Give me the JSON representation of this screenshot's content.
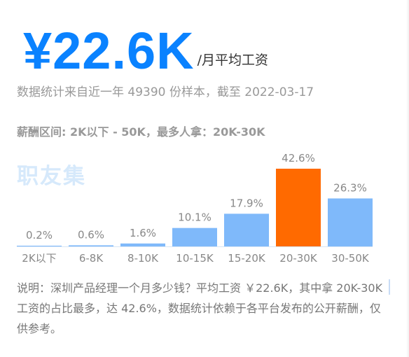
{
  "header": {
    "salary_value": "¥22.6K",
    "salary_unit": "/月平均工资",
    "source_text": "数据统计来自近一年 49390 份样本，截至 2022-03-17",
    "range_text": "薪酬区间: 2K以下 - 50K，最多人拿：20K-30K"
  },
  "watermark": "职友集",
  "chart_data": {
    "type": "bar",
    "title": "",
    "xlabel": "",
    "ylabel": "",
    "categories": [
      "2K以下",
      "6-8K",
      "8-10K",
      "10-15K",
      "15-20K",
      "20-30K",
      "30-50K"
    ],
    "values": [
      0.2,
      0.6,
      1.6,
      10.1,
      17.9,
      42.6,
      26.3
    ],
    "value_labels": [
      "0.2%",
      "0.6%",
      "1.6%",
      "10.1%",
      "17.9%",
      "42.6%",
      "26.3%"
    ],
    "unit": "%",
    "ylim": [
      0,
      42.6
    ],
    "highlight_index": 5,
    "grid": false,
    "legend": "none"
  },
  "description": "说明：深圳产品经理一个月多少钱？平均工资 ￥22.6K，其中拿 20K-30K 工资的占比最多，达 42.6%，数据统计依赖于各平台发布的公开薪酬，仅供参考。",
  "colors": {
    "salary": "#0a82ff",
    "bar": "#7fb9fa",
    "highlight_bar": "#ff6a00",
    "value_label": "#888888",
    "tick_label": "#888888",
    "axis_line": "#d8e6f5"
  }
}
